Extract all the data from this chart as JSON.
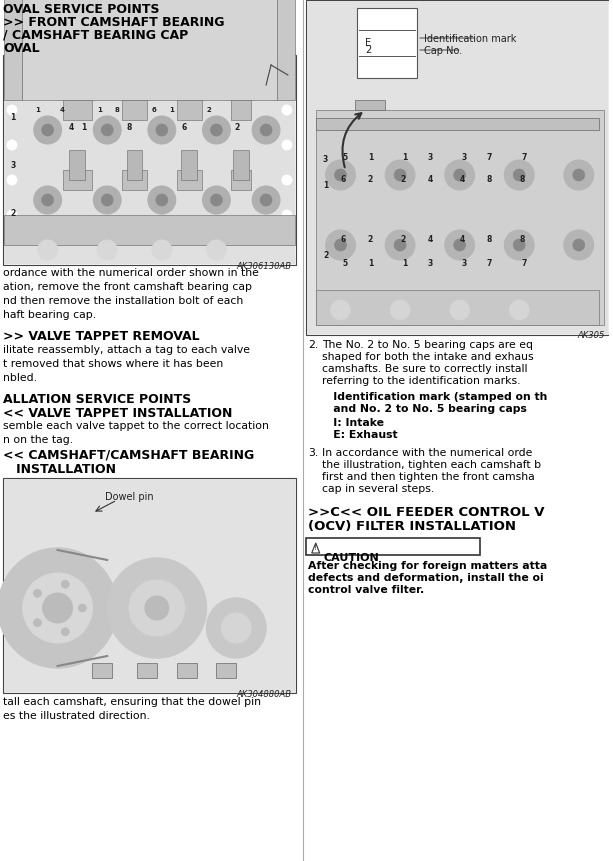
{
  "bg_color": "#ffffff",
  "title_fontsize": 9.0,
  "body_fontsize": 7.8,
  "heading_fontsize": 9.0,
  "small_fontsize": 6.5,
  "left": {
    "title1": "OVAL SERVICE POINTS",
    "title2": ">> FRONT CAMSHAFT BEARING",
    "title3": "/ CAMSHAFT BEARING CAP",
    "title4": "OVAL",
    "img1_label": "AK306130AB",
    "text1": "ordance with the numerical order shown in the\nation, remove the front camshaft bearing cap\nnd then remove the installation bolt of each\nhaft bearing cap.",
    "heading2": ">> VALVE TAPPET REMOVAL",
    "text2": "ilitate reassembly, attach a tag to each valve\nt removed that shows where it has been\nnbled.",
    "heading3": "ALLATION SERVICE POINTS",
    "heading4": "<< VALVE TAPPET INSTALLATION",
    "text3": "semble each valve tappet to the correct location\nn on the tag.",
    "heading5": "<< CAMSHAFT/CAMSHAFT BEARING",
    "heading6": "   INSTALLATION",
    "img2_label": "AK304880AB",
    "img2_dowelpin": "Dowel pin",
    "text4": "tall each camshaft, ensuring that the dowel pin\nes the illustrated direction."
  },
  "right": {
    "id_mark": "Identification mark",
    "cap_no": "Cap No.",
    "img_label": "AK305",
    "item2_num": "2.",
    "text2a": "The No. 2 to No. 5 bearing caps are eq",
    "text2b": "shaped for both the intake and exhaus",
    "text2c": "camshafts. Be sure to correctly install",
    "text2d": "referring to the identification marks.",
    "bold2a": "   Identification mark (stamped on th",
    "bold2b": "   and No. 2 to No. 5 bearing caps",
    "intake": "   I: Intake",
    "exhaust": "   E: Exhaust",
    "item3_num": "3.",
    "text3a": "In accordance with the numerical orde",
    "text3b": "the illustration, tighten each camshaft b",
    "text3c": "first and then tighten the front camsha",
    "text3d": "cap in several steps.",
    "heading_ocv1": ">>C<< OIL FEEDER CONTROL V",
    "heading_ocv2": "(OCV) FILTER INSTALLATION",
    "caution_title": "CAUTION",
    "caution1": "After checking for foreign matters atta",
    "caution2": "defects and deformation, install the oi",
    "caution3": "control valve filter."
  }
}
